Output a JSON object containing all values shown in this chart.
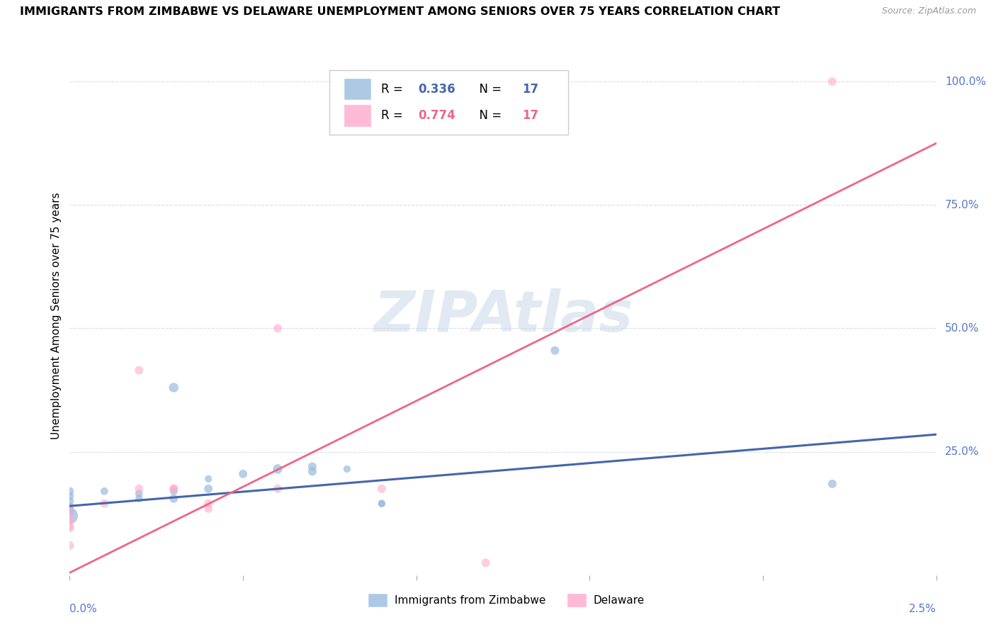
{
  "title": "IMMIGRANTS FROM ZIMBABWE VS DELAWARE UNEMPLOYMENT AMONG SENIORS OVER 75 YEARS CORRELATION CHART",
  "source": "Source: ZipAtlas.com",
  "ylabel": "Unemployment Among Seniors over 75 years",
  "xlim": [
    0.0,
    0.025
  ],
  "ylim": [
    0.0,
    1.05
  ],
  "blue_color": "#99BBDD",
  "pink_color": "#FFAACC",
  "blue_line_color": "#4466AA",
  "pink_line_color": "#EE6688",
  "watermark": "ZIPAtlas",
  "watermark_blue": "#C5D5E8",
  "watermark_pink": "#E8C5D0",
  "title_fontsize": 11.5,
  "axis_color": "#5577CC",
  "scatter_blue": {
    "x": [
      0.0,
      0.0,
      0.0,
      0.0,
      0.0,
      0.0,
      0.001,
      0.002,
      0.002,
      0.003,
      0.003,
      0.003,
      0.004,
      0.004,
      0.005,
      0.006,
      0.007,
      0.007,
      0.008,
      0.009,
      0.009,
      0.014,
      0.022
    ],
    "y": [
      0.12,
      0.13,
      0.14,
      0.15,
      0.16,
      0.17,
      0.17,
      0.155,
      0.165,
      0.17,
      0.155,
      0.38,
      0.195,
      0.175,
      0.205,
      0.215,
      0.21,
      0.22,
      0.215,
      0.145,
      0.145,
      0.455,
      0.185
    ],
    "sizes": [
      280,
      90,
      70,
      70,
      70,
      70,
      60,
      60,
      60,
      60,
      75,
      95,
      55,
      75,
      75,
      95,
      75,
      75,
      55,
      55,
      55,
      75,
      75
    ]
  },
  "scatter_pink": {
    "x": [
      0.0,
      0.0,
      0.0,
      0.0,
      0.0,
      0.001,
      0.002,
      0.002,
      0.003,
      0.003,
      0.004,
      0.004,
      0.006,
      0.006,
      0.009,
      0.012,
      0.022
    ],
    "y": [
      0.06,
      0.095,
      0.1,
      0.115,
      0.13,
      0.145,
      0.175,
      0.415,
      0.175,
      0.175,
      0.135,
      0.145,
      0.5,
      0.175,
      0.175,
      0.025,
      1.0
    ],
    "sizes": [
      75,
      75,
      75,
      75,
      75,
      75,
      75,
      75,
      75,
      75,
      75,
      75,
      75,
      75,
      75,
      75,
      75
    ]
  },
  "blue_trendline": {
    "x": [
      0.0,
      0.025
    ],
    "y": [
      0.14,
      0.285
    ]
  },
  "pink_trendline": {
    "x": [
      0.0,
      0.025
    ],
    "y": [
      0.005,
      0.875
    ]
  },
  "yticks": [
    0.25,
    0.5,
    0.75,
    1.0
  ],
  "ytick_labels": [
    "25.0%",
    "50.0%",
    "75.0%",
    "100.0%"
  ],
  "xtick_positions": [
    0.0,
    0.005,
    0.01,
    0.015,
    0.02,
    0.025
  ],
  "background_color": "#FFFFFF",
  "grid_color": "#DDDDEE"
}
